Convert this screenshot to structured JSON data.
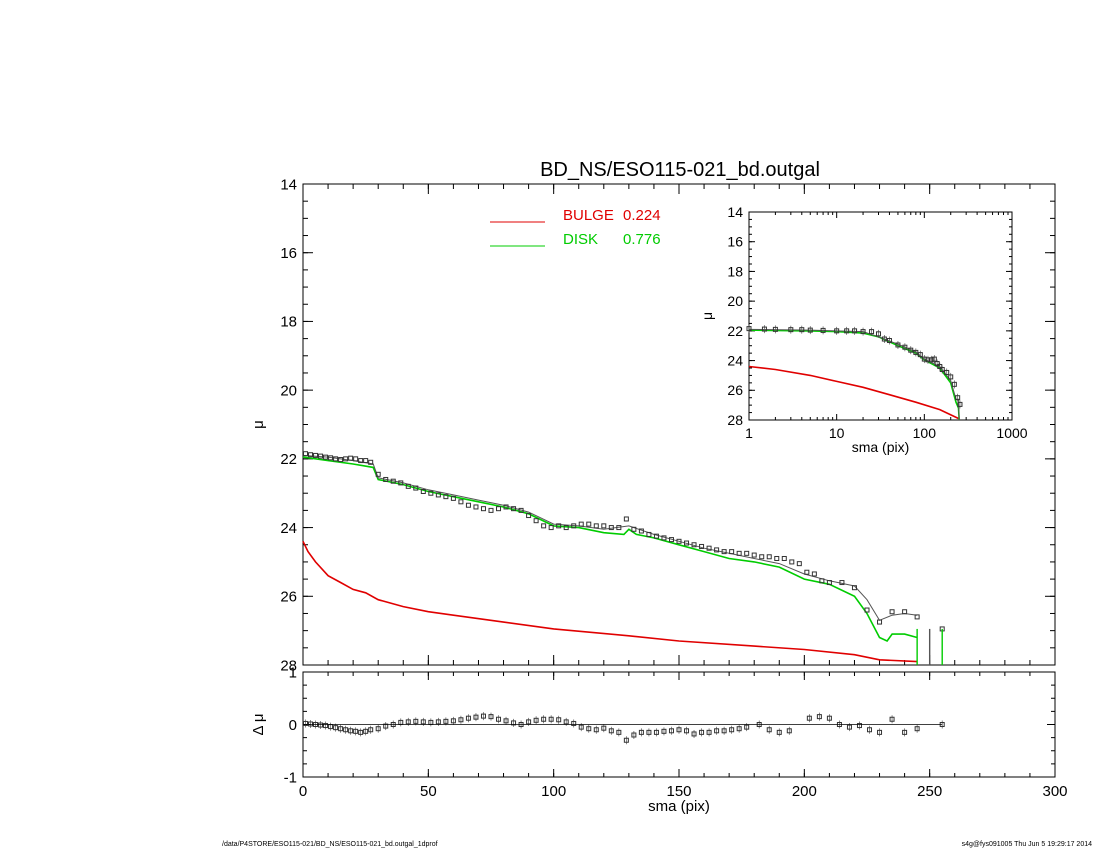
{
  "title": "BD_NS/ESO115-021_bd.outgal",
  "footer": {
    "left": "/data/P4STORE/ESO115-021/BD_NS/ESO115-021_bd.outgal_1dprof",
    "right": "s4g@fys091005  Thu Jun  5 19:29:17 2014"
  },
  "colors": {
    "bulge": "#e00000",
    "disk": "#00cc00",
    "model": "#555555",
    "data": "#333333"
  },
  "chart_data": [
    {
      "type": "line",
      "panel": "main",
      "title": "BD_NS/ESO115-021_bd.outgal",
      "xlabel": "sma (pix)",
      "ylabel": "μ",
      "xlim": [
        0,
        300
      ],
      "ylim": [
        28,
        14
      ],
      "y_inverted": true,
      "xticks": [
        "0",
        "50",
        "100",
        "150",
        "200",
        "250",
        "300"
      ],
      "yticks": [
        "14",
        "16",
        "18",
        "20",
        "22",
        "24",
        "26",
        "28"
      ],
      "legend": {
        "position": "top-center",
        "entries": [
          {
            "label": "BULGE",
            "value": "0.224",
            "color": "#e00000"
          },
          {
            "label": "DISK",
            "value": "0.776",
            "color": "#00cc00"
          }
        ]
      },
      "series": [
        {
          "name": "BULGE",
          "x": [
            0,
            2,
            5,
            10,
            15,
            20,
            25,
            30,
            40,
            50,
            60,
            80,
            100,
            130,
            150,
            180,
            200,
            220,
            230,
            245
          ],
          "y": [
            24.4,
            24.7,
            25.0,
            25.4,
            25.6,
            25.8,
            25.9,
            26.1,
            26.3,
            26.45,
            26.55,
            26.75,
            26.95,
            27.15,
            27.3,
            27.45,
            27.55,
            27.7,
            27.85,
            27.9
          ]
        },
        {
          "name": "DISK",
          "x": [
            0,
            10,
            20,
            28,
            30,
            40,
            50,
            60,
            70,
            80,
            90,
            100,
            110,
            120,
            128,
            130,
            133,
            140,
            150,
            160,
            170,
            180,
            190,
            200,
            210,
            220,
            225,
            230,
            233,
            235,
            240,
            245
          ],
          "y": [
            21.95,
            22.05,
            22.15,
            22.25,
            22.6,
            22.75,
            22.95,
            23.1,
            23.25,
            23.4,
            23.6,
            23.95,
            24.0,
            24.15,
            24.2,
            24.05,
            24.2,
            24.3,
            24.5,
            24.7,
            24.9,
            25.0,
            25.15,
            25.5,
            25.65,
            26.0,
            26.5,
            27.2,
            27.3,
            27.1,
            27.1,
            27.2
          ]
        },
        {
          "name": "model",
          "x": [
            0,
            10,
            20,
            28,
            30,
            40,
            50,
            60,
            70,
            80,
            90,
            100,
            110,
            120,
            130,
            140,
            150,
            160,
            170,
            180,
            190,
            200,
            210,
            220,
            225,
            230,
            235,
            240,
            245
          ],
          "y": [
            21.9,
            21.95,
            22.05,
            22.15,
            22.55,
            22.7,
            22.9,
            23.05,
            23.2,
            23.35,
            23.55,
            23.9,
            23.95,
            24.05,
            23.95,
            24.2,
            24.4,
            24.6,
            24.75,
            24.9,
            25.05,
            25.35,
            25.55,
            25.7,
            26.1,
            26.7,
            26.55,
            26.5,
            26.55
          ]
        },
        {
          "name": "data",
          "x": [
            1,
            3,
            5,
            7,
            9,
            11,
            13,
            15,
            17,
            19,
            21,
            23,
            25,
            27,
            30,
            33,
            36,
            39,
            42,
            45,
            48,
            51,
            54,
            57,
            60,
            63,
            66,
            69,
            72,
            75,
            78,
            81,
            84,
            87,
            90,
            93,
            96,
            99,
            102,
            105,
            108,
            111,
            114,
            117,
            120,
            123,
            126,
            129,
            132,
            135,
            138,
            141,
            144,
            147,
            150,
            153,
            156,
            159,
            162,
            165,
            168,
            171,
            174,
            177,
            180,
            183,
            186,
            189,
            192,
            195,
            198,
            201,
            204,
            207,
            210,
            215,
            220,
            225,
            230,
            235,
            240,
            245,
            255
          ],
          "y": [
            21.85,
            21.88,
            21.9,
            21.92,
            21.95,
            21.97,
            22.0,
            22.02,
            22.0,
            21.98,
            22.0,
            22.05,
            22.05,
            22.1,
            22.45,
            22.6,
            22.65,
            22.7,
            22.8,
            22.85,
            22.95,
            23.0,
            23.05,
            23.1,
            23.15,
            23.25,
            23.35,
            23.4,
            23.45,
            23.5,
            23.45,
            23.4,
            23.45,
            23.5,
            23.65,
            23.8,
            23.95,
            24.0,
            23.95,
            24.0,
            23.95,
            23.9,
            23.9,
            23.95,
            23.95,
            24.0,
            24.0,
            23.75,
            24.05,
            24.1,
            24.2,
            24.25,
            24.3,
            24.35,
            24.4,
            24.45,
            24.5,
            24.55,
            24.6,
            24.65,
            24.7,
            24.7,
            24.75,
            24.75,
            24.8,
            24.85,
            24.85,
            24.9,
            24.9,
            25.0,
            25.05,
            25.3,
            25.35,
            25.55,
            25.6,
            25.6,
            25.75,
            26.4,
            26.75,
            26.45,
            26.45,
            26.6,
            26.95
          ]
        }
      ]
    },
    {
      "type": "line",
      "panel": "inset",
      "xlabel": "sma (pix)",
      "ylabel": "μ",
      "xscale": "log",
      "xlim": [
        1,
        1000
      ],
      "ylim": [
        28,
        14
      ],
      "y_inverted": true,
      "xticks": [
        "1",
        "10",
        "100",
        "1000"
      ],
      "yticks": [
        "14",
        "16",
        "18",
        "20",
        "22",
        "24",
        "26",
        "28"
      ],
      "series": [
        {
          "name": "BULGE",
          "x": [
            1,
            2,
            5,
            10,
            20,
            40,
            80,
            150,
            245
          ],
          "y": [
            24.4,
            24.6,
            25.0,
            25.4,
            25.8,
            26.3,
            26.8,
            27.3,
            27.9
          ]
        },
        {
          "name": "DISK",
          "x": [
            1,
            5,
            10,
            20,
            30,
            50,
            80,
            100,
            150,
            200,
            230,
            245,
            250
          ],
          "y": [
            21.95,
            22.0,
            22.05,
            22.15,
            22.4,
            23.0,
            23.5,
            23.95,
            24.5,
            25.5,
            26.8,
            27.2,
            28.0
          ]
        },
        {
          "name": "model",
          "x": [
            1,
            5,
            10,
            20,
            30,
            50,
            80,
            100,
            150,
            200,
            230,
            245,
            250
          ],
          "y": [
            21.9,
            21.95,
            22.0,
            22.05,
            22.4,
            22.9,
            23.4,
            23.9,
            24.4,
            25.35,
            26.6,
            26.6,
            28.0
          ]
        },
        {
          "name": "data",
          "x": [
            1,
            1.5,
            2,
            3,
            4,
            5,
            7,
            10,
            13,
            16,
            20,
            25,
            30,
            35,
            40,
            50,
            60,
            70,
            80,
            90,
            100,
            110,
            120,
            130,
            140,
            150,
            160,
            180,
            200,
            220,
            240,
            255
          ],
          "y": [
            21.85,
            21.88,
            21.9,
            21.92,
            21.92,
            21.95,
            21.97,
            22.0,
            22.0,
            22.0,
            22.05,
            22.05,
            22.2,
            22.55,
            22.65,
            22.95,
            23.1,
            23.3,
            23.45,
            23.6,
            23.9,
            23.95,
            23.95,
            23.9,
            24.2,
            24.4,
            24.6,
            24.8,
            25.1,
            25.6,
            26.5,
            26.95
          ]
        }
      ]
    },
    {
      "type": "scatter",
      "panel": "residual",
      "xlabel": "sma (pix)",
      "ylabel": "Δ μ",
      "xlim": [
        0,
        300
      ],
      "ylim": [
        -1,
        1
      ],
      "xticks": [
        "0",
        "50",
        "100",
        "150",
        "200",
        "250",
        "300"
      ],
      "yticks": [
        "1",
        "0",
        "-1"
      ],
      "series": [
        {
          "name": "residual",
          "x": [
            1,
            3,
            5,
            7,
            9,
            11,
            13,
            15,
            17,
            19,
            21,
            23,
            25,
            27,
            30,
            33,
            36,
            39,
            42,
            45,
            48,
            51,
            54,
            57,
            60,
            63,
            66,
            69,
            72,
            75,
            78,
            81,
            84,
            87,
            90,
            93,
            96,
            99,
            102,
            105,
            108,
            111,
            114,
            117,
            120,
            123,
            126,
            129,
            132,
            135,
            138,
            141,
            144,
            147,
            150,
            153,
            156,
            159,
            162,
            165,
            168,
            171,
            174,
            177,
            182,
            186,
            190,
            194,
            202,
            206,
            210,
            214,
            218,
            222,
            226,
            230,
            235,
            240,
            245,
            255
          ],
          "y": [
            0.02,
            0.01,
            0.0,
            -0.01,
            -0.02,
            -0.04,
            -0.06,
            -0.08,
            -0.1,
            -0.12,
            -0.13,
            -0.15,
            -0.13,
            -0.1,
            -0.08,
            -0.03,
            0.0,
            0.04,
            0.05,
            0.06,
            0.05,
            0.04,
            0.05,
            0.06,
            0.07,
            0.09,
            0.12,
            0.14,
            0.16,
            0.15,
            0.1,
            0.07,
            0.03,
            0.0,
            0.05,
            0.08,
            0.1,
            0.1,
            0.09,
            0.05,
            0.02,
            -0.05,
            -0.08,
            -0.1,
            -0.07,
            -0.12,
            -0.15,
            -0.3,
            -0.2,
            -0.15,
            -0.15,
            -0.15,
            -0.13,
            -0.12,
            -0.1,
            -0.12,
            -0.18,
            -0.15,
            -0.15,
            -0.12,
            -0.12,
            -0.1,
            -0.08,
            -0.05,
            0.0,
            -0.1,
            -0.15,
            -0.12,
            0.12,
            0.15,
            0.12,
            0.0,
            -0.05,
            -0.02,
            -0.1,
            -0.15,
            0.1,
            -0.15,
            -0.08,
            0.0
          ]
        }
      ]
    }
  ]
}
